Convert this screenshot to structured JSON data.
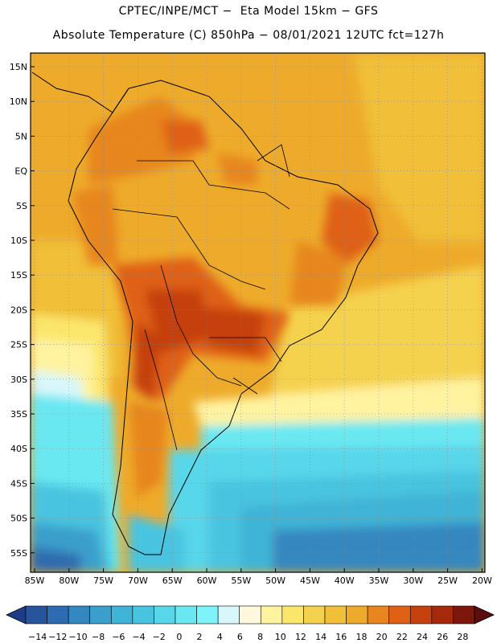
{
  "header": {
    "line1": "CPTEC/INPE/MCT −  Eta Model 15km − GFS",
    "line2": "Absolute Temperature (C) 850hPa − 08/01/2021 12UTC fct=127h"
  },
  "map": {
    "lat_labels": [
      "15N",
      "10N",
      "5N",
      "EQ",
      "5S",
      "10S",
      "15S",
      "20S",
      "25S",
      "30S",
      "35S",
      "40S",
      "45S",
      "50S",
      "55S"
    ],
    "lon_labels": [
      "85W",
      "80W",
      "75W",
      "70W",
      "65W",
      "60W",
      "55W",
      "50W",
      "45W",
      "40W",
      "35W",
      "30W",
      "25W",
      "20W"
    ]
  },
  "colorbar": {
    "labels": [
      "−14",
      "−12",
      "−10",
      "−8",
      "−6",
      "−4",
      "−2",
      "0",
      "2",
      "4",
      "6",
      "8",
      "10",
      "12",
      "14",
      "16",
      "18",
      "20",
      "22",
      "24",
      "26",
      "28"
    ],
    "colors": [
      "#1f3d87",
      "#27559c",
      "#2d6cb0",
      "#3587c0",
      "#3a9fcb",
      "#3fb4d6",
      "#48c4e0",
      "#58d6ea",
      "#69e8f2",
      "#7ef4fa",
      "#d8f7fb",
      "#fff8de",
      "#fff3a0",
      "#fbe66c",
      "#f5d24e",
      "#f1bf38",
      "#eeab2b",
      "#e7861e",
      "#df6116",
      "#c5410f",
      "#a52a0c",
      "#7e170b",
      "#5c0d0d"
    ]
  }
}
